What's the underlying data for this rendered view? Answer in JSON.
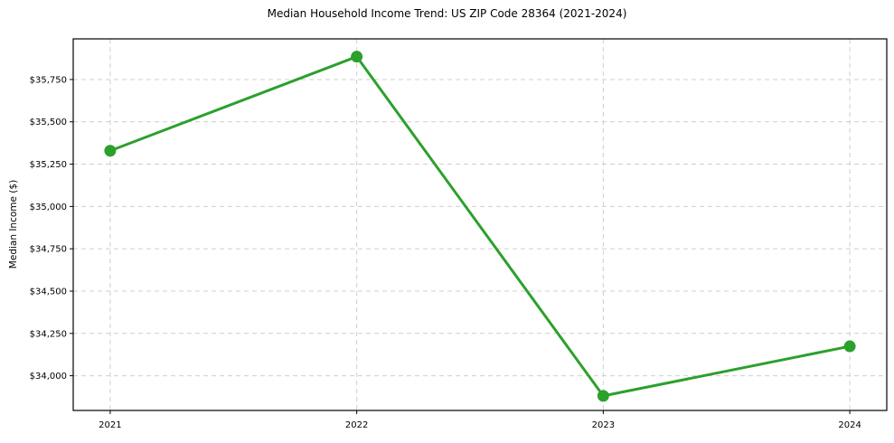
{
  "chart_data": {
    "type": "line",
    "title": "Median Household Income Trend: US ZIP Code 28364 (2021-2024)",
    "xlabel": "",
    "ylabel": "Median Income ($)",
    "x": [
      2021,
      2022,
      2023,
      2024
    ],
    "x_tick_labels": [
      "2021",
      "2022",
      "2023",
      "2024"
    ],
    "values": [
      35329,
      35885,
      33881,
      34174
    ],
    "y_ticks": [
      34000,
      34250,
      34500,
      34750,
      35000,
      35250,
      35500,
      35750
    ],
    "y_tick_labels": [
      "$34,000",
      "$34,250",
      "$34,500",
      "$34,750",
      "$35,000",
      "$35,250",
      "$35,500",
      "$35,750"
    ],
    "xlim": [
      2020.85,
      2024.15
    ],
    "ylim": [
      33795,
      35990
    ],
    "grid": true,
    "grid_style": "dashed",
    "legend": "none",
    "line_width": 3,
    "marker": {
      "shape": "circle",
      "radius": 6.5
    },
    "colors": {
      "line": "#2ca02c",
      "marker": "#2ca02c",
      "grid": "#cfcfcf",
      "spine": "#000000",
      "text": "#000000",
      "background": "#ffffff"
    }
  }
}
